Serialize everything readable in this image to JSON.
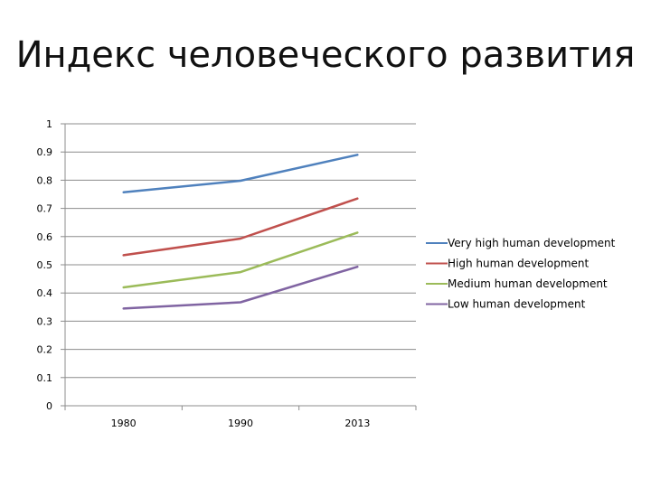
{
  "slide": {
    "title": "Индекс человеческого развития"
  },
  "chart_data": {
    "type": "line",
    "title": "",
    "xlabel": "",
    "ylabel": "",
    "categories": [
      "1980",
      "1990",
      "2013"
    ],
    "ylim": [
      0,
      1
    ],
    "yticks": [
      0,
      0.1,
      0.2,
      0.3,
      0.4,
      0.5,
      0.6,
      0.7,
      0.8,
      0.9,
      1
    ],
    "ytick_labels": [
      "0",
      "0.1",
      "0.2",
      "0.3",
      "0.4",
      "0.5",
      "0.6",
      "0.7",
      "0.8",
      "0.9",
      "1"
    ],
    "grid": true,
    "legend_position": "right",
    "series": [
      {
        "name": "Very high human development",
        "color": "#4F81BD",
        "values": [
          0.757,
          0.798,
          0.89
        ]
      },
      {
        "name": "High human development",
        "color": "#C0504D",
        "values": [
          0.534,
          0.593,
          0.735
        ]
      },
      {
        "name": "Medium human development",
        "color": "#9BBB59",
        "values": [
          0.42,
          0.474,
          0.614
        ]
      },
      {
        "name": "Low human development",
        "color": "#8064A2",
        "values": [
          0.345,
          0.367,
          0.493
        ]
      }
    ]
  }
}
